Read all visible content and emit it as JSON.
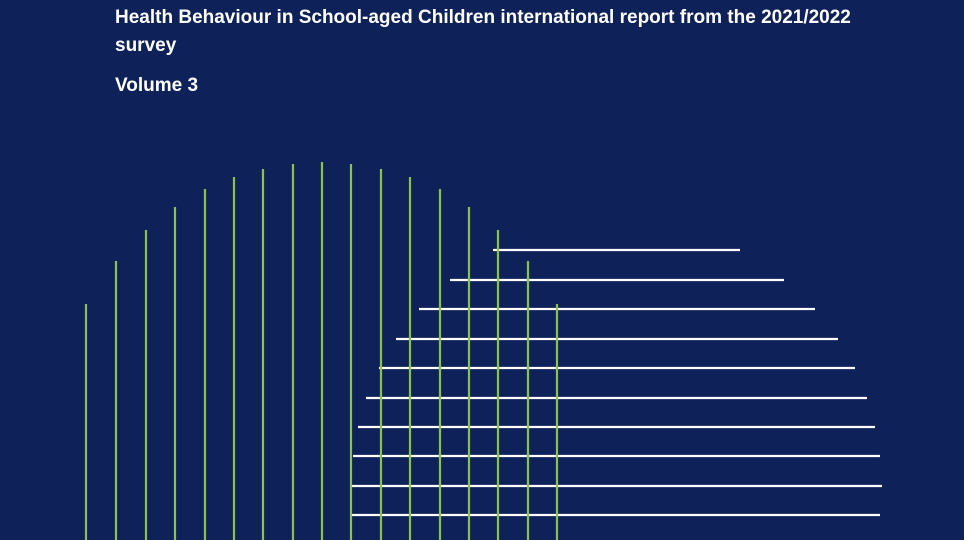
{
  "report": {
    "title": "Health Behaviour in School-aged Children international report from the 2021/2022 survey",
    "volume": "Volume 3"
  },
  "colors": {
    "background": "#0E2159",
    "text": "#FFFFFF",
    "vertical_lines": "#8BC34A",
    "horizontal_lines": "#FFFFFF"
  }
}
